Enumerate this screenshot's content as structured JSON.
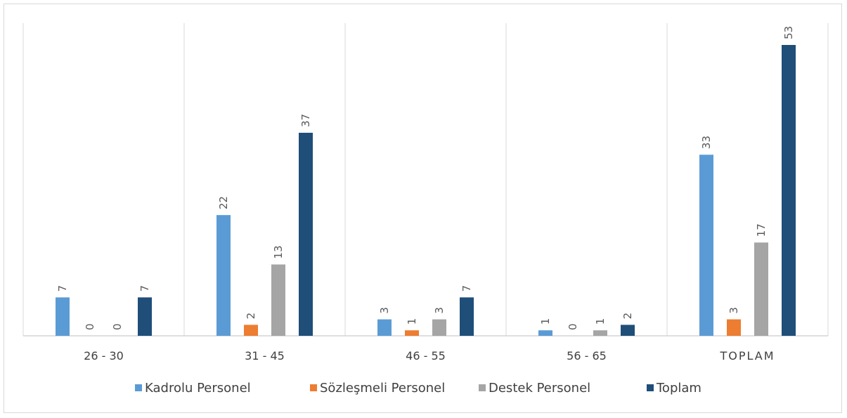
{
  "chart_data": {
    "type": "bar",
    "categories": [
      "26 - 30",
      "31 - 45",
      "46 - 55",
      "56 - 65",
      "TOPLAM"
    ],
    "series": [
      {
        "name": "Kadrolu Personel",
        "color": "#5b9bd5",
        "values": [
          7,
          22,
          3,
          1,
          33
        ]
      },
      {
        "name": "Sözleşmeli Personel",
        "color": "#ed7d31",
        "values": [
          0,
          2,
          1,
          0,
          3
        ]
      },
      {
        "name": "Destek Personel",
        "color": "#a5a5a5",
        "values": [
          0,
          13,
          3,
          1,
          17
        ]
      },
      {
        "name": "Toplam",
        "color": "#1f4e79",
        "values": [
          7,
          37,
          7,
          2,
          53
        ]
      }
    ],
    "ylim": [
      0,
      60
    ],
    "grid": "vertical-separators",
    "legend": "bottom",
    "data_labels": true
  }
}
